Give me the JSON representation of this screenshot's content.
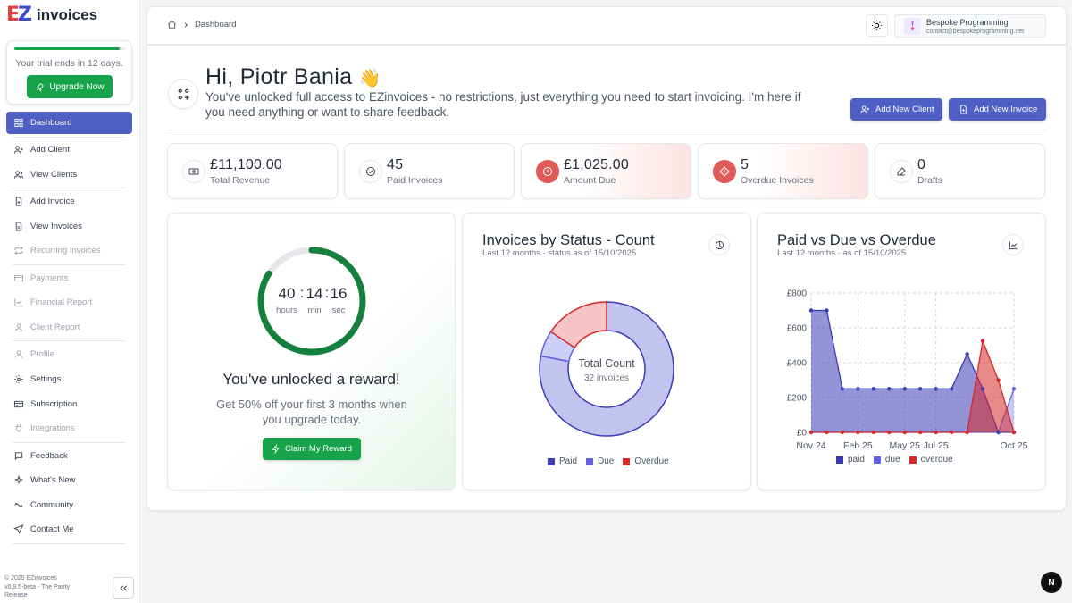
{
  "brand": {
    "logo_letters": [
      "E",
      "Z"
    ],
    "name": "invoices",
    "colors": {
      "red": "#e53e3e",
      "blue": "#3b4cca"
    }
  },
  "trial": {
    "text": "Your trial ends in 12 days.",
    "progress": 0.95,
    "upgrade_label": "Upgrade Now"
  },
  "sidebar": {
    "items": [
      {
        "label": "Dashboard",
        "icon": "dashboard-icon",
        "active": true
      },
      {
        "label": "Add Client",
        "icon": "user-plus-icon"
      },
      {
        "label": "View Clients",
        "icon": "users-icon"
      },
      {
        "label": "Add Invoice",
        "icon": "file-plus-icon"
      },
      {
        "label": "View Invoices",
        "icon": "file-icon"
      },
      {
        "label": "Recurring Invoices",
        "icon": "repeat-icon",
        "disabled": true
      },
      {
        "label": "Payments",
        "icon": "card-icon",
        "disabled": true
      },
      {
        "label": "Financial Report",
        "icon": "chart-icon",
        "disabled": true
      },
      {
        "label": "Client Report",
        "icon": "user-report-icon",
        "disabled": true
      },
      {
        "label": "Profile",
        "icon": "profile-icon",
        "disabled": true
      },
      {
        "label": "Settings",
        "icon": "gear-icon"
      },
      {
        "label": "Subscription",
        "icon": "subscription-icon"
      },
      {
        "label": "Integrations",
        "icon": "integrations-icon",
        "disabled": true
      },
      {
        "label": "Feedback",
        "icon": "feedback-icon"
      },
      {
        "label": "What's New",
        "icon": "sparkle-icon"
      },
      {
        "label": "Community",
        "icon": "community-icon"
      },
      {
        "label": "Contact Me",
        "icon": "send-icon"
      }
    ],
    "footer": {
      "line1": "© 2025 EZinvoices",
      "line2": "v0.9.5-beta - The Parity",
      "line3": "Release"
    }
  },
  "header": {
    "breadcrumb": "Dashboard",
    "user": {
      "name": "Bespoke Programming",
      "email": "contact@bespokeprogramming.net"
    }
  },
  "greeting": {
    "title": "Hi, Piotr Bania",
    "emoji": "👋",
    "subtitle": "You've unlocked full access to EZinvoices - no restrictions, just everything you need to start invoicing. I'm here if you need anything or want to share feedback.",
    "add_client_label": "Add New Client",
    "add_invoice_label": "Add New Invoice"
  },
  "stats": [
    {
      "value": "£11,100.00",
      "label": "Total Revenue",
      "icon": "money-icon"
    },
    {
      "value": "45",
      "label": "Paid Invoices",
      "icon": "check-circle-icon"
    },
    {
      "value": "£1,025.00",
      "label": "Amount Due",
      "icon": "clock-icon",
      "warn": true
    },
    {
      "value": "5",
      "label": "Overdue Invoices",
      "icon": "alert-diamond-icon",
      "warn": true
    },
    {
      "value": "0",
      "label": "Drafts",
      "icon": "edit-icon"
    }
  ],
  "reward": {
    "timer": {
      "hours": "40",
      "minutes": "14",
      "seconds": "16",
      "hours_label": "hours",
      "min_label": "min",
      "sec_label": "sec",
      "progress": 0.84
    },
    "title": "You've unlocked a reward!",
    "description": "Get 50% off your first 3 months when you upgrade today.",
    "claim_label": "Claim My Reward"
  },
  "status_chart": {
    "title": "Invoices by Status - Count",
    "subtitle": "Last 12 months · status as of 15/10/2025",
    "center_title": "Total Count",
    "center_sub": "32 invoices",
    "legend": [
      "Paid",
      "Due",
      "Overdue"
    ]
  },
  "trend_chart": {
    "title": "Paid vs Due vs Overdue",
    "subtitle": "Last 12 months · as of 15/10/2025",
    "legend": [
      "paid",
      "due",
      "overdue"
    ]
  },
  "chart_data": [
    {
      "type": "pie",
      "title": "Invoices by Status - Count",
      "categories": [
        "Paid",
        "Due",
        "Overdue"
      ],
      "values": [
        25,
        2,
        5
      ],
      "colors": [
        "#3b3bb3",
        "#6262e6",
        "#d62828"
      ]
    },
    {
      "type": "area",
      "title": "Paid vs Due vs Overdue",
      "x_ticks": [
        "Nov 24",
        "Feb 25",
        "May 25",
        "Jul 25",
        "Oct 25"
      ],
      "y_ticks": [
        "£0",
        "£200",
        "£400",
        "£600",
        "£800"
      ],
      "ylim": [
        0,
        800
      ],
      "grid": true,
      "legend_position": "bottom",
      "series": [
        {
          "name": "paid",
          "color": "#3b3bb3",
          "values": [
            700,
            700,
            250,
            250,
            250,
            250,
            250,
            250,
            250,
            250,
            450,
            250,
            0,
            0
          ]
        },
        {
          "name": "due",
          "color": "#6262e6",
          "values": [
            0,
            0,
            0,
            0,
            0,
            0,
            0,
            0,
            0,
            0,
            0,
            0,
            0,
            250
          ]
        },
        {
          "name": "overdue",
          "color": "#d62828",
          "values": [
            0,
            0,
            0,
            0,
            0,
            0,
            0,
            0,
            0,
            0,
            0,
            525,
            300,
            0
          ]
        }
      ]
    }
  ]
}
